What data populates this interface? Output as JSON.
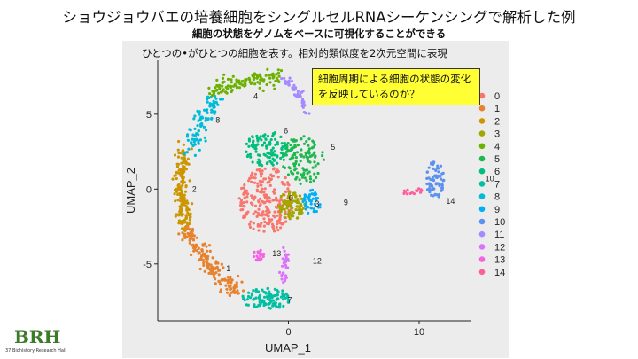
{
  "header": {
    "title": "ショウジョウバエの培養細胞をシングルセルRNAシーケンシングで解析した例",
    "subtitle": "細胞の状態をゲノムをベースに可視化することができる"
  },
  "figure": {
    "caption": "ひとつの•がひとつの細胞を表す。相対的類似度を2次元空間に表現",
    "annotation": "細胞周期による細胞の状態の変化を反映しているのか？"
  },
  "logo": {
    "main": "BRH",
    "sub": "37 Biohistory Research Hall"
  },
  "chart_data": {
    "type": "scatter",
    "xlabel": "UMAP_1",
    "ylabel": "UMAP_2",
    "xlim": [
      -10,
      14
    ],
    "ylim": [
      -8.8,
      8.6
    ],
    "xticks": [
      0,
      10
    ],
    "yticks": [
      -5,
      0,
      5
    ],
    "xtick_labels": [
      "0",
      "10"
    ],
    "ytick_labels": [
      "-5",
      "0",
      "5"
    ],
    "grid": false,
    "legend_position": "right",
    "series": [
      {
        "name": "0",
        "color": "#f8766d",
        "center": [
          0.2,
          -0.6
        ]
      },
      {
        "name": "1",
        "color": "#e6822f",
        "center": [
          -4.6,
          -5.3
        ]
      },
      {
        "name": "2",
        "color": "#cd9600",
        "center": [
          -7.2,
          0.0
        ]
      },
      {
        "name": "3",
        "color": "#a3a500",
        "center": [
          2.2,
          -1.0
        ]
      },
      {
        "name": "4",
        "color": "#6bb100",
        "center": [
          -2.5,
          6.2
        ]
      },
      {
        "name": "5",
        "color": "#1eb84e",
        "center": [
          3.4,
          2.8
        ]
      },
      {
        "name": "6",
        "color": "#00bf7d",
        "center": [
          -0.2,
          3.9
        ]
      },
      {
        "name": "7",
        "color": "#00bfa2",
        "center": [
          0.1,
          -7.4
        ]
      },
      {
        "name": "8",
        "color": "#00bbd8",
        "center": [
          -5.4,
          4.6
        ]
      },
      {
        "name": "9",
        "color": "#00b0f6",
        "center": [
          4.4,
          -0.9
        ]
      },
      {
        "name": "10",
        "color": "#5c91f0",
        "center": [
          15.4,
          0.7
        ]
      },
      {
        "name": "11",
        "color": "#a58aff",
        "center": [
          2.8,
          7.6
        ]
      },
      {
        "name": "12",
        "color": "#db72fb",
        "center": [
          2.2,
          -4.8
        ]
      },
      {
        "name": "13",
        "color": "#f563e3",
        "center": [
          -0.9,
          -4.3
        ]
      },
      {
        "name": "14",
        "color": "#ff5e9d",
        "center": [
          12.4,
          -0.8
        ]
      }
    ]
  }
}
